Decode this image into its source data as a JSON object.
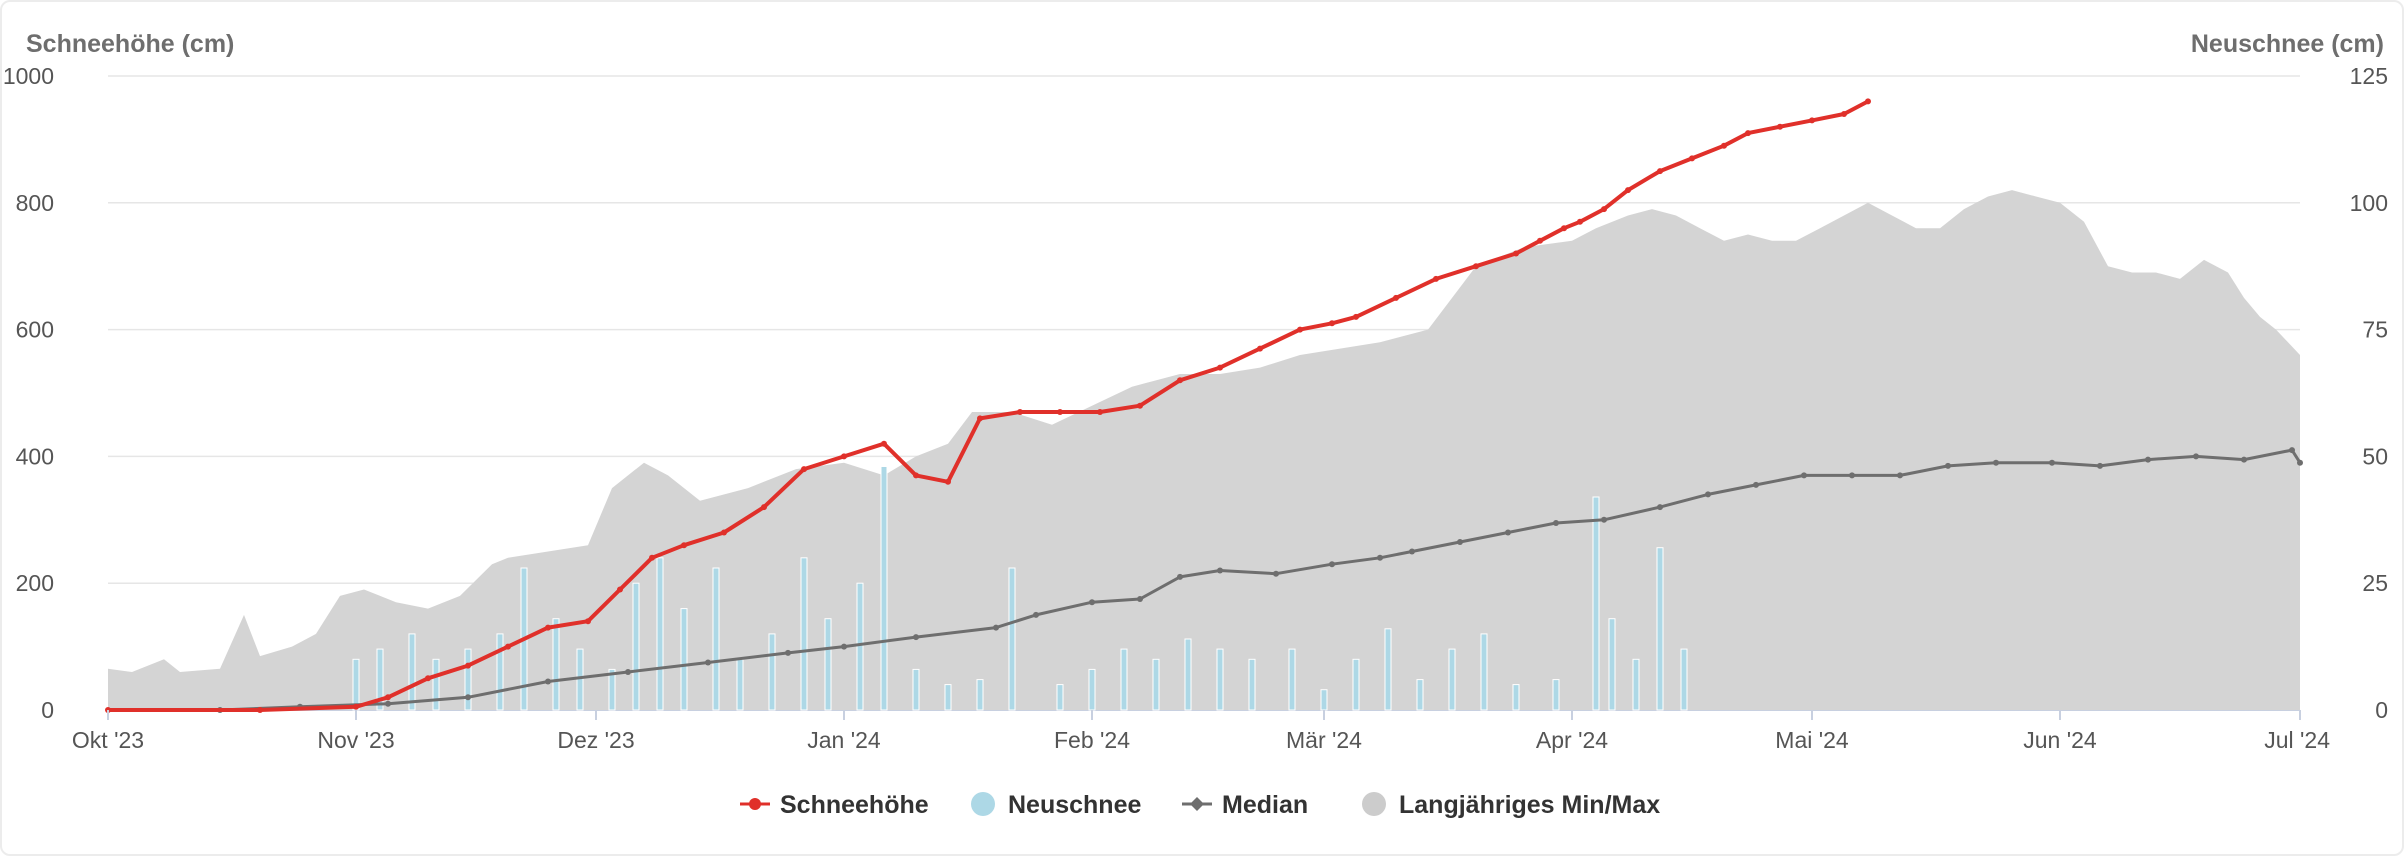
{
  "chart_data": {
    "type": "area",
    "y_axis_left": {
      "label": "Schneehöhe (cm)",
      "range": [
        0,
        1000
      ],
      "ticks": [
        "0",
        "200",
        "400",
        "600",
        "800",
        "1000"
      ]
    },
    "y_axis_right": {
      "label": "Neuschnee (cm)",
      "range": [
        0,
        125
      ],
      "ticks": [
        "0",
        "25",
        "50",
        "75",
        "100",
        "125"
      ]
    },
    "x_axis": {
      "range": [
        "2023-10-01",
        "2024-07-01"
      ],
      "ticks": [
        {
          "date": "2023-10-01",
          "label": "Okt '23"
        },
        {
          "date": "2023-11-01",
          "label": "Nov '23"
        },
        {
          "date": "2023-12-01",
          "label": "Dez '23"
        },
        {
          "date": "2024-01-01",
          "label": "Jan '24"
        },
        {
          "date": "2024-02-01",
          "label": "Feb '24"
        },
        {
          "date": "2024-03-01",
          "label": "Mär '24"
        },
        {
          "date": "2024-04-01",
          "label": "Apr '24"
        },
        {
          "date": "2024-05-01",
          "label": "Mai '24"
        },
        {
          "date": "2024-06-01",
          "label": "Jun '24"
        },
        {
          "date": "2024-07-01",
          "label": "Jul '24"
        }
      ]
    },
    "grid": true,
    "legend_position": "bottom-center",
    "legend": [
      {
        "name": "Schneehöhe",
        "color": "#e0302a"
      },
      {
        "name": "Neuschnee",
        "color": "#add8e6"
      },
      {
        "name": "Median",
        "color": "#6e6e6e"
      },
      {
        "name": "Langjähriges Min/Max",
        "color": "#cccccc"
      }
    ],
    "series": [
      {
        "name": "Langjähriges Min/Max",
        "type": "arearange",
        "color": "#d4d4d4",
        "data": [
          [
            "2023-10-01",
            0,
            65
          ],
          [
            "2023-10-04",
            0,
            60
          ],
          [
            "2023-10-08",
            0,
            80
          ],
          [
            "2023-10-10",
            0,
            60
          ],
          [
            "2023-10-15",
            0,
            65
          ],
          [
            "2023-10-18",
            0,
            150
          ],
          [
            "2023-10-20",
            0,
            85
          ],
          [
            "2023-10-24",
            0,
            100
          ],
          [
            "2023-10-27",
            0,
            120
          ],
          [
            "2023-10-30",
            0,
            180
          ],
          [
            "2023-11-02",
            0,
            190
          ],
          [
            "2023-11-06",
            0,
            170
          ],
          [
            "2023-11-10",
            0,
            160
          ],
          [
            "2023-11-14",
            0,
            180
          ],
          [
            "2023-11-18",
            0,
            230
          ],
          [
            "2023-11-20",
            0,
            240
          ],
          [
            "2023-11-25",
            0,
            250
          ],
          [
            "2023-11-30",
            0,
            260
          ],
          [
            "2023-12-03",
            0,
            350
          ],
          [
            "2023-12-07",
            0,
            390
          ],
          [
            "2023-12-10",
            0,
            370
          ],
          [
            "2023-12-14",
            0,
            330
          ],
          [
            "2023-12-20",
            0,
            350
          ],
          [
            "2023-12-26",
            0,
            380
          ],
          [
            "2024-01-01",
            0,
            390
          ],
          [
            "2024-01-06",
            0,
            370
          ],
          [
            "2024-01-10",
            0,
            400
          ],
          [
            "2024-01-14",
            0,
            420
          ],
          [
            "2024-01-17",
            0,
            470
          ],
          [
            "2024-01-22",
            0,
            470
          ],
          [
            "2024-01-27",
            0,
            450
          ],
          [
            "2024-02-01",
            0,
            480
          ],
          [
            "2024-02-06",
            0,
            510
          ],
          [
            "2024-02-12",
            0,
            530
          ],
          [
            "2024-02-17",
            0,
            530
          ],
          [
            "2024-02-22",
            0,
            540
          ],
          [
            "2024-02-27",
            0,
            560
          ],
          [
            "2024-03-03",
            0,
            570
          ],
          [
            "2024-03-08",
            0,
            580
          ],
          [
            "2024-03-14",
            0,
            600
          ],
          [
            "2024-03-20",
            0,
            700
          ],
          [
            "2024-03-26",
            0,
            730
          ],
          [
            "2024-04-01",
            0,
            740
          ],
          [
            "2024-04-04",
            0,
            760
          ],
          [
            "2024-04-08",
            0,
            780
          ],
          [
            "2024-04-11",
            0,
            790
          ],
          [
            "2024-04-14",
            0,
            780
          ],
          [
            "2024-04-17",
            0,
            760
          ],
          [
            "2024-04-20",
            0,
            740
          ],
          [
            "2024-04-23",
            0,
            750
          ],
          [
            "2024-04-26",
            0,
            740
          ],
          [
            "2024-04-29",
            0,
            740
          ],
          [
            "2024-05-02",
            0,
            760
          ],
          [
            "2024-05-05",
            0,
            780
          ],
          [
            "2024-05-08",
            0,
            800
          ],
          [
            "2024-05-11",
            0,
            780
          ],
          [
            "2024-05-14",
            0,
            760
          ],
          [
            "2024-05-17",
            0,
            760
          ],
          [
            "2024-05-20",
            0,
            790
          ],
          [
            "2024-05-23",
            0,
            810
          ],
          [
            "2024-05-26",
            0,
            820
          ],
          [
            "2024-05-29",
            0,
            810
          ],
          [
            "2024-06-01",
            0,
            800
          ],
          [
            "2024-06-04",
            0,
            770
          ],
          [
            "2024-06-07",
            0,
            700
          ],
          [
            "2024-06-10",
            0,
            690
          ],
          [
            "2024-06-13",
            0,
            690
          ],
          [
            "2024-06-16",
            0,
            680
          ],
          [
            "2024-06-19",
            0,
            710
          ],
          [
            "2024-06-22",
            0,
            690
          ],
          [
            "2024-06-24",
            0,
            650
          ],
          [
            "2024-06-26",
            0,
            620
          ],
          [
            "2024-06-28",
            0,
            600
          ],
          [
            "2024-07-01",
            0,
            560
          ]
        ]
      },
      {
        "name": "Median",
        "type": "line",
        "color": "#6e6e6e",
        "data": [
          [
            "2023-10-15",
            0
          ],
          [
            "2023-10-25",
            5
          ],
          [
            "2023-11-05",
            10
          ],
          [
            "2023-11-15",
            20
          ],
          [
            "2023-11-25",
            45
          ],
          [
            "2023-12-05",
            60
          ],
          [
            "2023-12-15",
            75
          ],
          [
            "2023-12-25",
            90
          ],
          [
            "2024-01-01",
            100
          ],
          [
            "2024-01-10",
            115
          ],
          [
            "2024-01-20",
            130
          ],
          [
            "2024-01-25",
            150
          ],
          [
            "2024-02-01",
            170
          ],
          [
            "2024-02-07",
            175
          ],
          [
            "2024-02-12",
            210
          ],
          [
            "2024-02-17",
            220
          ],
          [
            "2024-02-24",
            215
          ],
          [
            "2024-03-02",
            230
          ],
          [
            "2024-03-08",
            240
          ],
          [
            "2024-03-12",
            250
          ],
          [
            "2024-03-18",
            265
          ],
          [
            "2024-03-24",
            280
          ],
          [
            "2024-03-30",
            295
          ],
          [
            "2024-04-05",
            300
          ],
          [
            "2024-04-12",
            320
          ],
          [
            "2024-04-18",
            340
          ],
          [
            "2024-04-24",
            355
          ],
          [
            "2024-04-30",
            370
          ],
          [
            "2024-05-06",
            370
          ],
          [
            "2024-05-12",
            370
          ],
          [
            "2024-05-18",
            385
          ],
          [
            "2024-05-24",
            390
          ],
          [
            "2024-05-31",
            390
          ],
          [
            "2024-06-06",
            385
          ],
          [
            "2024-06-12",
            395
          ],
          [
            "2024-06-18",
            400
          ],
          [
            "2024-06-24",
            395
          ],
          [
            "2024-06-30",
            410
          ],
          [
            "2024-07-01",
            390
          ]
        ]
      },
      {
        "name": "Schneehöhe",
        "type": "line",
        "color": "#e0302a",
        "data": [
          [
            "2023-10-01",
            0
          ],
          [
            "2023-10-20",
            0
          ],
          [
            "2023-11-01",
            5
          ],
          [
            "2023-11-05",
            20
          ],
          [
            "2023-11-10",
            50
          ],
          [
            "2023-11-15",
            70
          ],
          [
            "2023-11-20",
            100
          ],
          [
            "2023-11-25",
            130
          ],
          [
            "2023-11-30",
            140
          ],
          [
            "2023-12-04",
            190
          ],
          [
            "2023-12-08",
            240
          ],
          [
            "2023-12-12",
            260
          ],
          [
            "2023-12-17",
            280
          ],
          [
            "2023-12-22",
            320
          ],
          [
            "2023-12-27",
            380
          ],
          [
            "2024-01-01",
            400
          ],
          [
            "2024-01-06",
            420
          ],
          [
            "2024-01-10",
            370
          ],
          [
            "2024-01-14",
            360
          ],
          [
            "2024-01-18",
            460
          ],
          [
            "2024-01-23",
            470
          ],
          [
            "2024-01-28",
            470
          ],
          [
            "2024-02-02",
            470
          ],
          [
            "2024-02-07",
            480
          ],
          [
            "2024-02-12",
            520
          ],
          [
            "2024-02-17",
            540
          ],
          [
            "2024-02-22",
            570
          ],
          [
            "2024-02-27",
            600
          ],
          [
            "2024-03-02",
            610
          ],
          [
            "2024-03-05",
            620
          ],
          [
            "2024-03-10",
            650
          ],
          [
            "2024-03-15",
            680
          ],
          [
            "2024-03-20",
            700
          ],
          [
            "2024-03-25",
            720
          ],
          [
            "2024-03-28",
            740
          ],
          [
            "2024-03-31",
            760
          ],
          [
            "2024-04-02",
            770
          ],
          [
            "2024-04-05",
            790
          ],
          [
            "2024-04-08",
            820
          ],
          [
            "2024-04-12",
            850
          ],
          [
            "2024-04-16",
            870
          ],
          [
            "2024-04-20",
            890
          ],
          [
            "2024-04-23",
            910
          ],
          [
            "2024-04-27",
            920
          ],
          [
            "2024-05-01",
            930
          ],
          [
            "2024-05-05",
            940
          ],
          [
            "2024-05-08",
            960
          ]
        ]
      },
      {
        "name": "Neuschnee",
        "type": "column",
        "color": "#add8e6",
        "data": [
          [
            "2023-11-01",
            10
          ],
          [
            "2023-11-04",
            12
          ],
          [
            "2023-11-08",
            15
          ],
          [
            "2023-11-11",
            10
          ],
          [
            "2023-11-15",
            12
          ],
          [
            "2023-11-19",
            15
          ],
          [
            "2023-11-22",
            28
          ],
          [
            "2023-11-26",
            18
          ],
          [
            "2023-11-29",
            12
          ],
          [
            "2023-12-03",
            8
          ],
          [
            "2023-12-06",
            25
          ],
          [
            "2023-12-09",
            30
          ],
          [
            "2023-12-12",
            20
          ],
          [
            "2023-12-16",
            28
          ],
          [
            "2023-12-19",
            10
          ],
          [
            "2023-12-23",
            15
          ],
          [
            "2023-12-27",
            30
          ],
          [
            "2023-12-30",
            18
          ],
          [
            "2024-01-03",
            25
          ],
          [
            "2024-01-06",
            48
          ],
          [
            "2024-01-10",
            8
          ],
          [
            "2024-01-14",
            5
          ],
          [
            "2024-01-18",
            6
          ],
          [
            "2024-01-22",
            28
          ],
          [
            "2024-01-28",
            5
          ],
          [
            "2024-02-01",
            8
          ],
          [
            "2024-02-05",
            12
          ],
          [
            "2024-02-09",
            10
          ],
          [
            "2024-02-13",
            14
          ],
          [
            "2024-02-17",
            12
          ],
          [
            "2024-02-21",
            10
          ],
          [
            "2024-02-26",
            12
          ],
          [
            "2024-03-01",
            4
          ],
          [
            "2024-03-05",
            10
          ],
          [
            "2024-03-09",
            16
          ],
          [
            "2024-03-13",
            6
          ],
          [
            "2024-03-17",
            12
          ],
          [
            "2024-03-21",
            15
          ],
          [
            "2024-03-25",
            5
          ],
          [
            "2024-03-30",
            6
          ],
          [
            "2024-04-04",
            42
          ],
          [
            "2024-04-06",
            18
          ],
          [
            "2024-04-09",
            10
          ],
          [
            "2024-04-12",
            32
          ],
          [
            "2024-04-15",
            12
          ]
        ]
      }
    ]
  }
}
